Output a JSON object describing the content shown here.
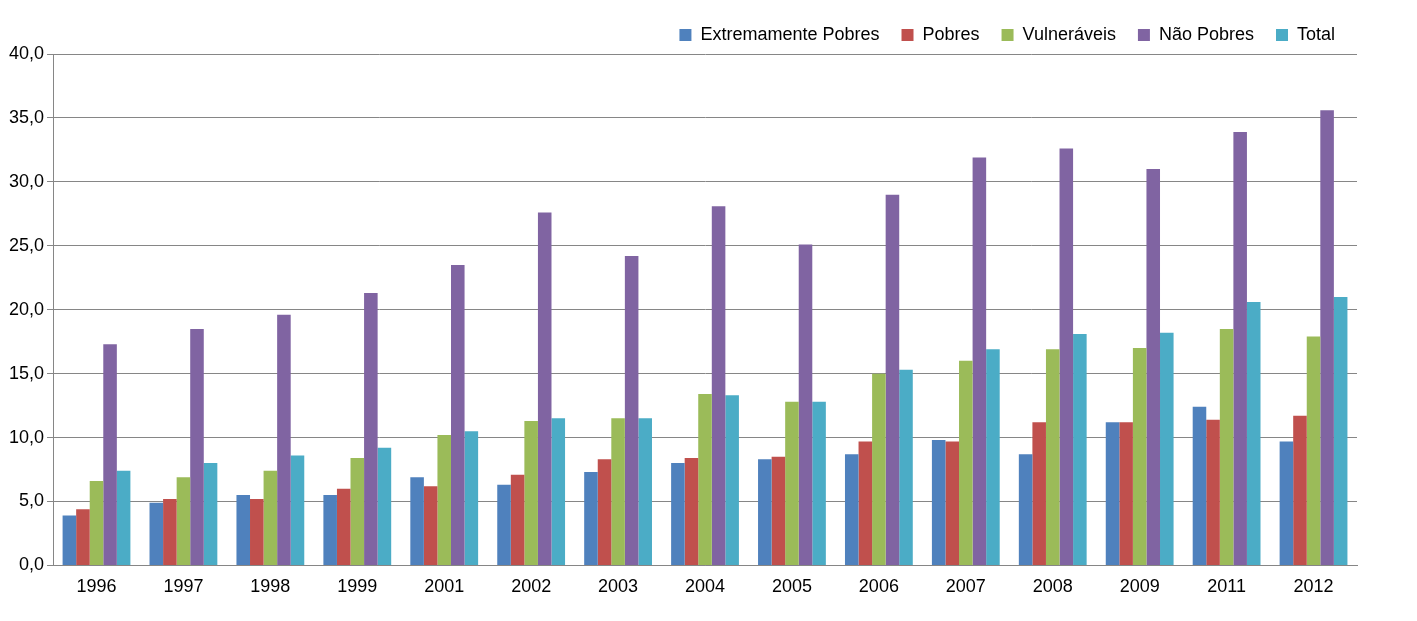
{
  "chart_data": {
    "type": "bar",
    "categories": [
      "1996",
      "1997",
      "1998",
      "1999",
      "2001",
      "2002",
      "2003",
      "2004",
      "2005",
      "2006",
      "2007",
      "2008",
      "2009",
      "2011",
      "2012"
    ],
    "series": [
      {
        "name": "Extremamente Pobres",
        "color": "#4F81BD",
        "values": [
          3.9,
          4.9,
          5.5,
          5.5,
          6.9,
          6.3,
          7.3,
          8.0,
          8.3,
          8.7,
          9.8,
          8.7,
          11.2,
          12.4,
          9.7
        ]
      },
      {
        "name": "Pobres",
        "color": "#C0504D",
        "values": [
          4.4,
          5.2,
          5.2,
          6.0,
          6.2,
          7.1,
          8.3,
          8.4,
          8.5,
          9.7,
          9.7,
          11.2,
          11.2,
          11.4,
          11.7
        ]
      },
      {
        "name": "Vulneráveis",
        "color": "#9BBB59",
        "values": [
          6.6,
          6.9,
          7.4,
          8.4,
          10.2,
          11.3,
          11.5,
          13.4,
          12.8,
          15.0,
          16.0,
          16.9,
          17.0,
          18.5,
          17.9
        ]
      },
      {
        "name": "Não Pobres",
        "color": "#8064A2",
        "values": [
          17.3,
          18.5,
          19.6,
          21.3,
          23.5,
          27.6,
          24.2,
          28.1,
          25.1,
          29.0,
          31.9,
          32.6,
          31.0,
          33.9,
          35.6
        ]
      },
      {
        "name": "Total",
        "color": "#4BACC6",
        "values": [
          7.4,
          8.0,
          8.6,
          9.2,
          10.5,
          11.5,
          11.5,
          13.3,
          12.8,
          15.3,
          16.9,
          18.1,
          18.2,
          20.6,
          21.0
        ]
      }
    ],
    "ylim": [
      0,
      40
    ],
    "yticks": [
      {
        "value": 0,
        "label": "0,0"
      },
      {
        "value": 5,
        "label": "5,0"
      },
      {
        "value": 10,
        "label": "10,0"
      },
      {
        "value": 15,
        "label": "15,0"
      },
      {
        "value": 20,
        "label": "20,0"
      },
      {
        "value": 25,
        "label": "25,0"
      },
      {
        "value": 30,
        "label": "30,0"
      },
      {
        "value": 35,
        "label": "35,0"
      },
      {
        "value": 40,
        "label": "40,0"
      }
    ],
    "grid": true,
    "legend": "top"
  }
}
